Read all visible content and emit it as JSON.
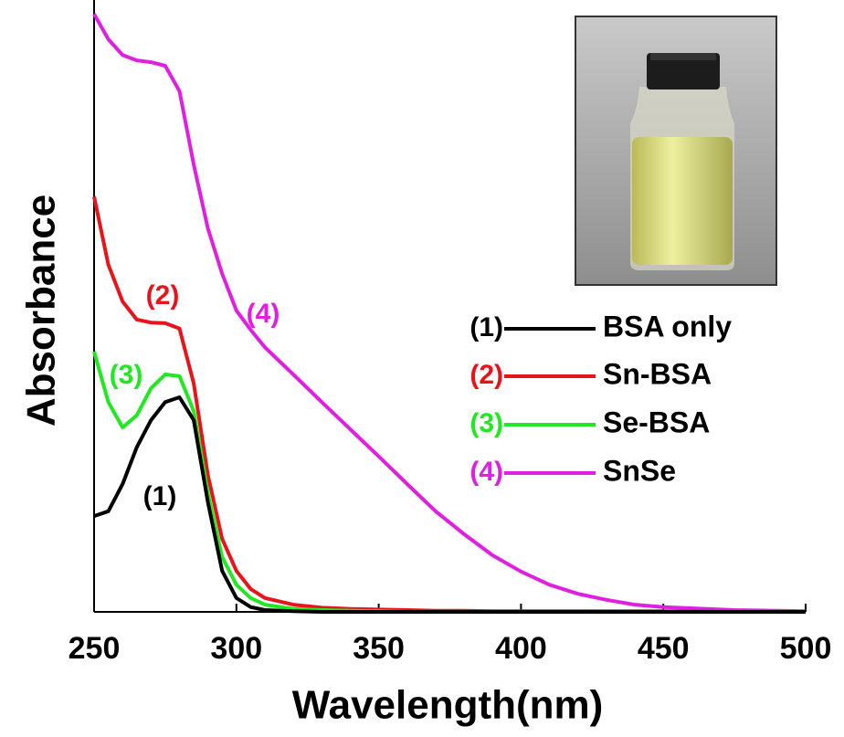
{
  "chart_data": {
    "type": "line",
    "x_label": "Wavelength(nm)",
    "y_label": "Absorbance",
    "x": [
      250,
      255,
      260,
      265,
      270,
      275,
      280,
      285,
      290,
      295,
      300,
      305,
      310,
      320,
      330,
      340,
      350,
      360,
      370,
      380,
      390,
      400,
      410,
      420,
      430,
      440,
      450,
      475,
      500
    ],
    "xlim": [
      250,
      500
    ],
    "xticks": [
      250,
      300,
      350,
      400,
      450,
      500
    ],
    "ylim": [
      0,
      1
    ],
    "series": [
      {
        "name": "BSA only",
        "color": "#000000",
        "values": [
          0.159,
          0.167,
          0.212,
          0.273,
          0.318,
          0.348,
          0.356,
          0.318,
          0.182,
          0.068,
          0.023,
          0.008,
          0.003,
          0.001,
          0,
          0,
          0,
          0,
          0,
          0,
          0,
          0,
          0,
          0,
          0,
          0,
          0,
          0,
          0
        ]
      },
      {
        "name": "Sn-BSA",
        "color": "#e8141b",
        "values": [
          0.689,
          0.576,
          0.515,
          0.485,
          0.48,
          0.479,
          0.47,
          0.379,
          0.227,
          0.121,
          0.068,
          0.038,
          0.023,
          0.012,
          0.007,
          0.005,
          0.004,
          0.003,
          0.002,
          0.002,
          0.001,
          0.001,
          0.001,
          0.001,
          0.001,
          0.001,
          0.001,
          0,
          0
        ]
      },
      {
        "name": "Se-BSA",
        "color": "#22e822",
        "values": [
          0.432,
          0.348,
          0.306,
          0.326,
          0.371,
          0.394,
          0.391,
          0.333,
          0.197,
          0.091,
          0.045,
          0.023,
          0.012,
          0.005,
          0.003,
          0.002,
          0.001,
          0,
          0,
          0,
          0,
          0,
          0,
          0,
          0,
          0,
          0,
          0,
          0
        ]
      },
      {
        "name": "SnSe",
        "color": "#e020e0",
        "values": [
          0.992,
          0.95,
          0.924,
          0.915,
          0.912,
          0.906,
          0.864,
          0.742,
          0.636,
          0.561,
          0.5,
          0.468,
          0.439,
          0.394,
          0.348,
          0.303,
          0.258,
          0.212,
          0.167,
          0.129,
          0.094,
          0.067,
          0.045,
          0.03,
          0.02,
          0.012,
          0.008,
          0.003,
          0.001
        ]
      }
    ],
    "annotations": [
      "(1)",
      "(2)",
      "(3)",
      "(4)"
    ],
    "legend_labels": [
      "(1)",
      "(2)",
      "(3)",
      "(4)"
    ]
  }
}
